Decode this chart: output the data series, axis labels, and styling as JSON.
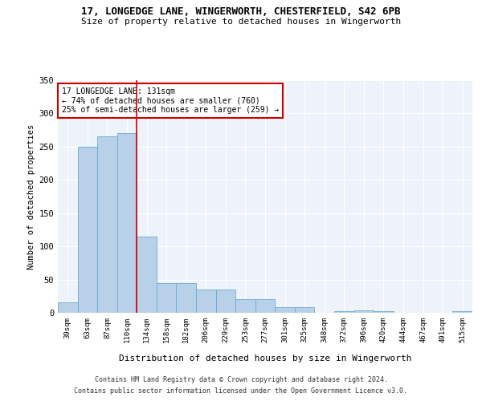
{
  "title": "17, LONGEDGE LANE, WINGERWORTH, CHESTERFIELD, S42 6PB",
  "subtitle": "Size of property relative to detached houses in Wingerworth",
  "xlabel": "Distribution of detached houses by size in Wingerworth",
  "ylabel": "Number of detached properties",
  "categories": [
    "39sqm",
    "63sqm",
    "87sqm",
    "110sqm",
    "134sqm",
    "158sqm",
    "182sqm",
    "206sqm",
    "229sqm",
    "253sqm",
    "277sqm",
    "301sqm",
    "325sqm",
    "348sqm",
    "372sqm",
    "396sqm",
    "420sqm",
    "444sqm",
    "467sqm",
    "491sqm",
    "515sqm"
  ],
  "values": [
    16,
    250,
    265,
    270,
    115,
    45,
    45,
    35,
    35,
    21,
    21,
    8,
    8,
    0,
    3,
    4,
    3,
    0,
    0,
    0,
    2
  ],
  "bar_color": "#b8d0e8",
  "bar_edge_color": "#6aaad4",
  "vline_index": 4,
  "vline_color": "#cc0000",
  "annotation_line1": "17 LONGEDGE LANE: 131sqm",
  "annotation_line2": "← 74% of detached houses are smaller (760)",
  "annotation_line3": "25% of semi-detached houses are larger (259) →",
  "annotation_box_color": "#ffffff",
  "annotation_box_edge_color": "#cc0000",
  "ylim": [
    0,
    350
  ],
  "yticks": [
    0,
    50,
    100,
    150,
    200,
    250,
    300,
    350
  ],
  "background_color": "#eef2fa",
  "grid_color": "#ffffff",
  "footer_line1": "Contains HM Land Registry data © Crown copyright and database right 2024.",
  "footer_line2": "Contains public sector information licensed under the Open Government Licence v3.0."
}
